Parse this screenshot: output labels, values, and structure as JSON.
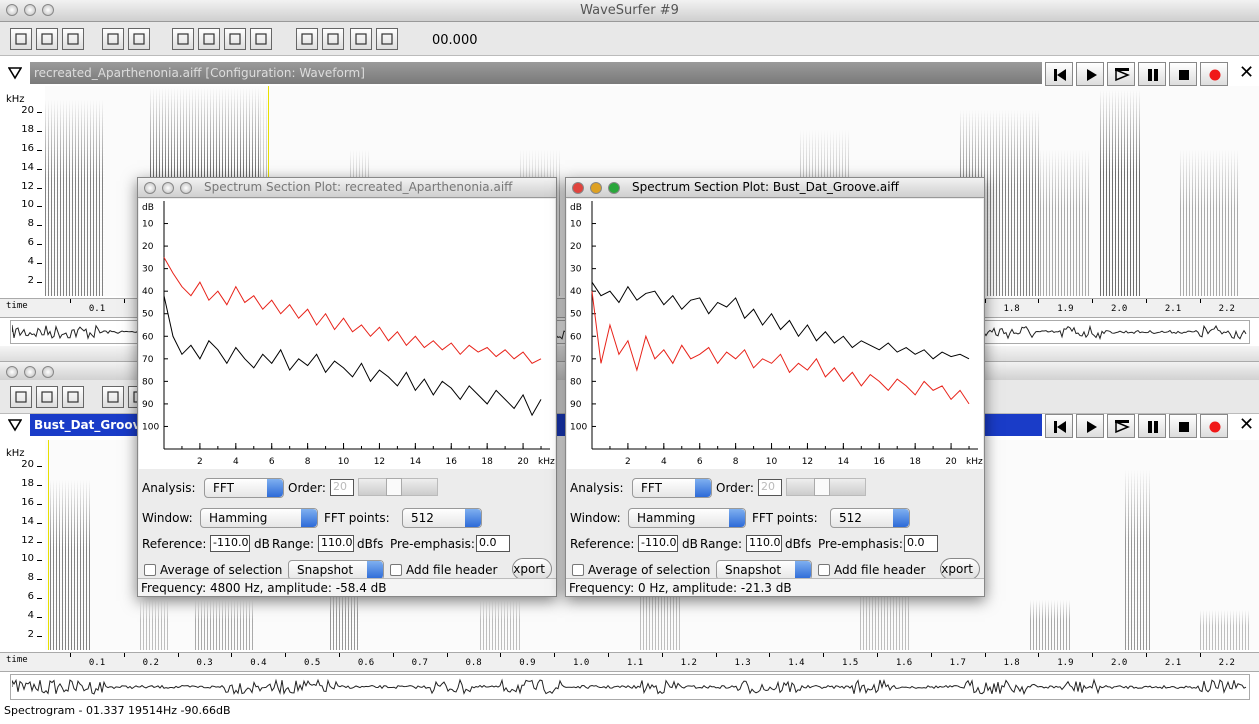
{
  "window": {
    "title": "WaveSurfer #9",
    "time": "00.000",
    "status": "Spectrogram - 01.337 19514Hz -90.66dB"
  },
  "panes": [
    {
      "title": "recreated_Aparthenonia.aiff   [Configuration: Waveform]"
    },
    {
      "title": "Bust_Dat_Groove"
    }
  ],
  "freq_axis": {
    "unit": "kHz",
    "ticks": [
      20,
      18,
      16,
      14,
      12,
      10,
      8,
      6,
      4,
      2
    ]
  },
  "time_axis": {
    "label": "time",
    "ticks": [
      "0.1",
      "0.2",
      "0.3",
      "0.4",
      "0.5",
      "0.6",
      "0.7",
      "0.8",
      "0.9",
      "1.0",
      "1.1",
      "1.2",
      "1.3",
      "1.4",
      "1.5",
      "1.6",
      "1.7",
      "1.8",
      "1.9",
      "2.0",
      "2.1",
      "2.2"
    ]
  },
  "dialogs": [
    {
      "title": "Spectrum Section Plot: recreated_Aparthenonia.aiff",
      "plot": {
        "type": "line",
        "y_unit": "dB",
        "x_unit": "kHz",
        "xlim": [
          0,
          21.5
        ],
        "ylim": [
          0,
          110
        ],
        "xticks": [
          2,
          4,
          6,
          8,
          10,
          12,
          14,
          16,
          18,
          20
        ],
        "yticks": [
          10,
          20,
          30,
          40,
          50,
          60,
          70,
          80,
          90,
          100
        ],
        "x": [
          0,
          0.5,
          1,
          1.5,
          2,
          2.5,
          3,
          3.5,
          4,
          4.5,
          5,
          5.5,
          6,
          6.5,
          7,
          7.5,
          8,
          8.5,
          9,
          9.5,
          10,
          10.5,
          11,
          11.5,
          12,
          12.5,
          13,
          13.5,
          14,
          14.5,
          15,
          15.5,
          16,
          16.5,
          17,
          17.5,
          18,
          18.5,
          19,
          19.5,
          20,
          20.5,
          21
        ],
        "series": [
          {
            "color": "#000000",
            "values": [
              42,
              60,
              68,
              64,
              70,
              62,
              66,
              72,
              65,
              70,
              74,
              68,
              72,
              66,
              75,
              70,
              73,
              68,
              76,
              71,
              74,
              78,
              72,
              80,
              75,
              78,
              82,
              76,
              84,
              79,
              86,
              80,
              83,
              88,
              82,
              86,
              90,
              84,
              88,
              92,
              86,
              95,
              88
            ]
          },
          {
            "color": "#e8231a",
            "values": [
              25,
              32,
              38,
              42,
              36,
              44,
              40,
              46,
              38,
              45,
              42,
              48,
              44,
              50,
              46,
              52,
              48,
              55,
              50,
              57,
              52,
              58,
              55,
              60,
              56,
              62,
              58,
              64,
              60,
              65,
              62,
              66,
              63,
              68,
              64,
              67,
              65,
              69,
              66,
              70,
              67,
              72,
              70
            ]
          }
        ]
      },
      "controls": {
        "analysis_label": "Analysis:",
        "analysis": "FFT",
        "order_label": "Order:",
        "order": "20",
        "window_label": "Window:",
        "window": "Hamming",
        "fft_points_label": "FFT points:",
        "fft_points": "512",
        "reference_label": "Reference:",
        "reference": "-110.0",
        "reference_unit": "dB",
        "range_label": "Range:",
        "range": "110.0",
        "range_unit": "dBfs",
        "preemphasis_label": "Pre-emphasis:",
        "preemphasis": "0.0",
        "average_label": "Average of selection",
        "mode": "Snapshot",
        "header_label": "Add file header",
        "export": "Export"
      },
      "status": "Frequency: 4800 Hz, amplitude: -58.4 dB"
    },
    {
      "title": "Spectrum Section Plot: Bust_Dat_Groove.aiff",
      "plot": {
        "type": "line",
        "y_unit": "dB",
        "x_unit": "kHz",
        "xlim": [
          0,
          21.5
        ],
        "ylim": [
          0,
          110
        ],
        "xticks": [
          2,
          4,
          6,
          8,
          10,
          12,
          14,
          16,
          18,
          20
        ],
        "yticks": [
          10,
          20,
          30,
          40,
          50,
          60,
          70,
          80,
          90,
          100
        ],
        "x": [
          0,
          0.5,
          1,
          1.5,
          2,
          2.5,
          3,
          3.5,
          4,
          4.5,
          5,
          5.5,
          6,
          6.5,
          7,
          7.5,
          8,
          8.5,
          9,
          9.5,
          10,
          10.5,
          11,
          11.5,
          12,
          12.5,
          13,
          13.5,
          14,
          14.5,
          15,
          15.5,
          16,
          16.5,
          17,
          17.5,
          18,
          18.5,
          19,
          19.5,
          20,
          20.5,
          21
        ],
        "series": [
          {
            "color": "#e8231a",
            "values": [
              40,
              72,
              55,
              68,
              62,
              75,
              60,
              70,
              66,
              72,
              64,
              70,
              68,
              65,
              72,
              67,
              70,
              66,
              74,
              70,
              72,
              68,
              76,
              72,
              75,
              70,
              78,
              74,
              80,
              76,
              82,
              77,
              80,
              84,
              79,
              82,
              86,
              80,
              84,
              82,
              88,
              84,
              90
            ]
          },
          {
            "color": "#000000",
            "values": [
              36,
              42,
              40,
              45,
              38,
              44,
              41,
              40,
              46,
              42,
              48,
              44,
              43,
              50,
              45,
              47,
              43,
              52,
              48,
              55,
              50,
              57,
              53,
              60,
              55,
              62,
              58,
              63,
              60,
              65,
              62,
              64,
              66,
              63,
              67,
              65,
              68,
              66,
              70,
              67,
              69,
              68,
              70
            ]
          }
        ]
      },
      "controls": {
        "analysis_label": "Analysis:",
        "analysis": "FFT",
        "order_label": "Order:",
        "order": "20",
        "window_label": "Window:",
        "window": "Hamming",
        "fft_points_label": "FFT points:",
        "fft_points": "512",
        "reference_label": "Reference:",
        "reference": "-110.0",
        "reference_unit": "dB",
        "range_label": "Range:",
        "range": "110.0",
        "range_unit": "dBfs",
        "preemphasis_label": "Pre-emphasis:",
        "preemphasis": "0.0",
        "average_label": "Average of selection",
        "mode": "Snapshot",
        "header_label": "Add file header",
        "export": "Export"
      },
      "status": "Frequency: 0 Hz, amplitude: -21.3 dB"
    }
  ]
}
